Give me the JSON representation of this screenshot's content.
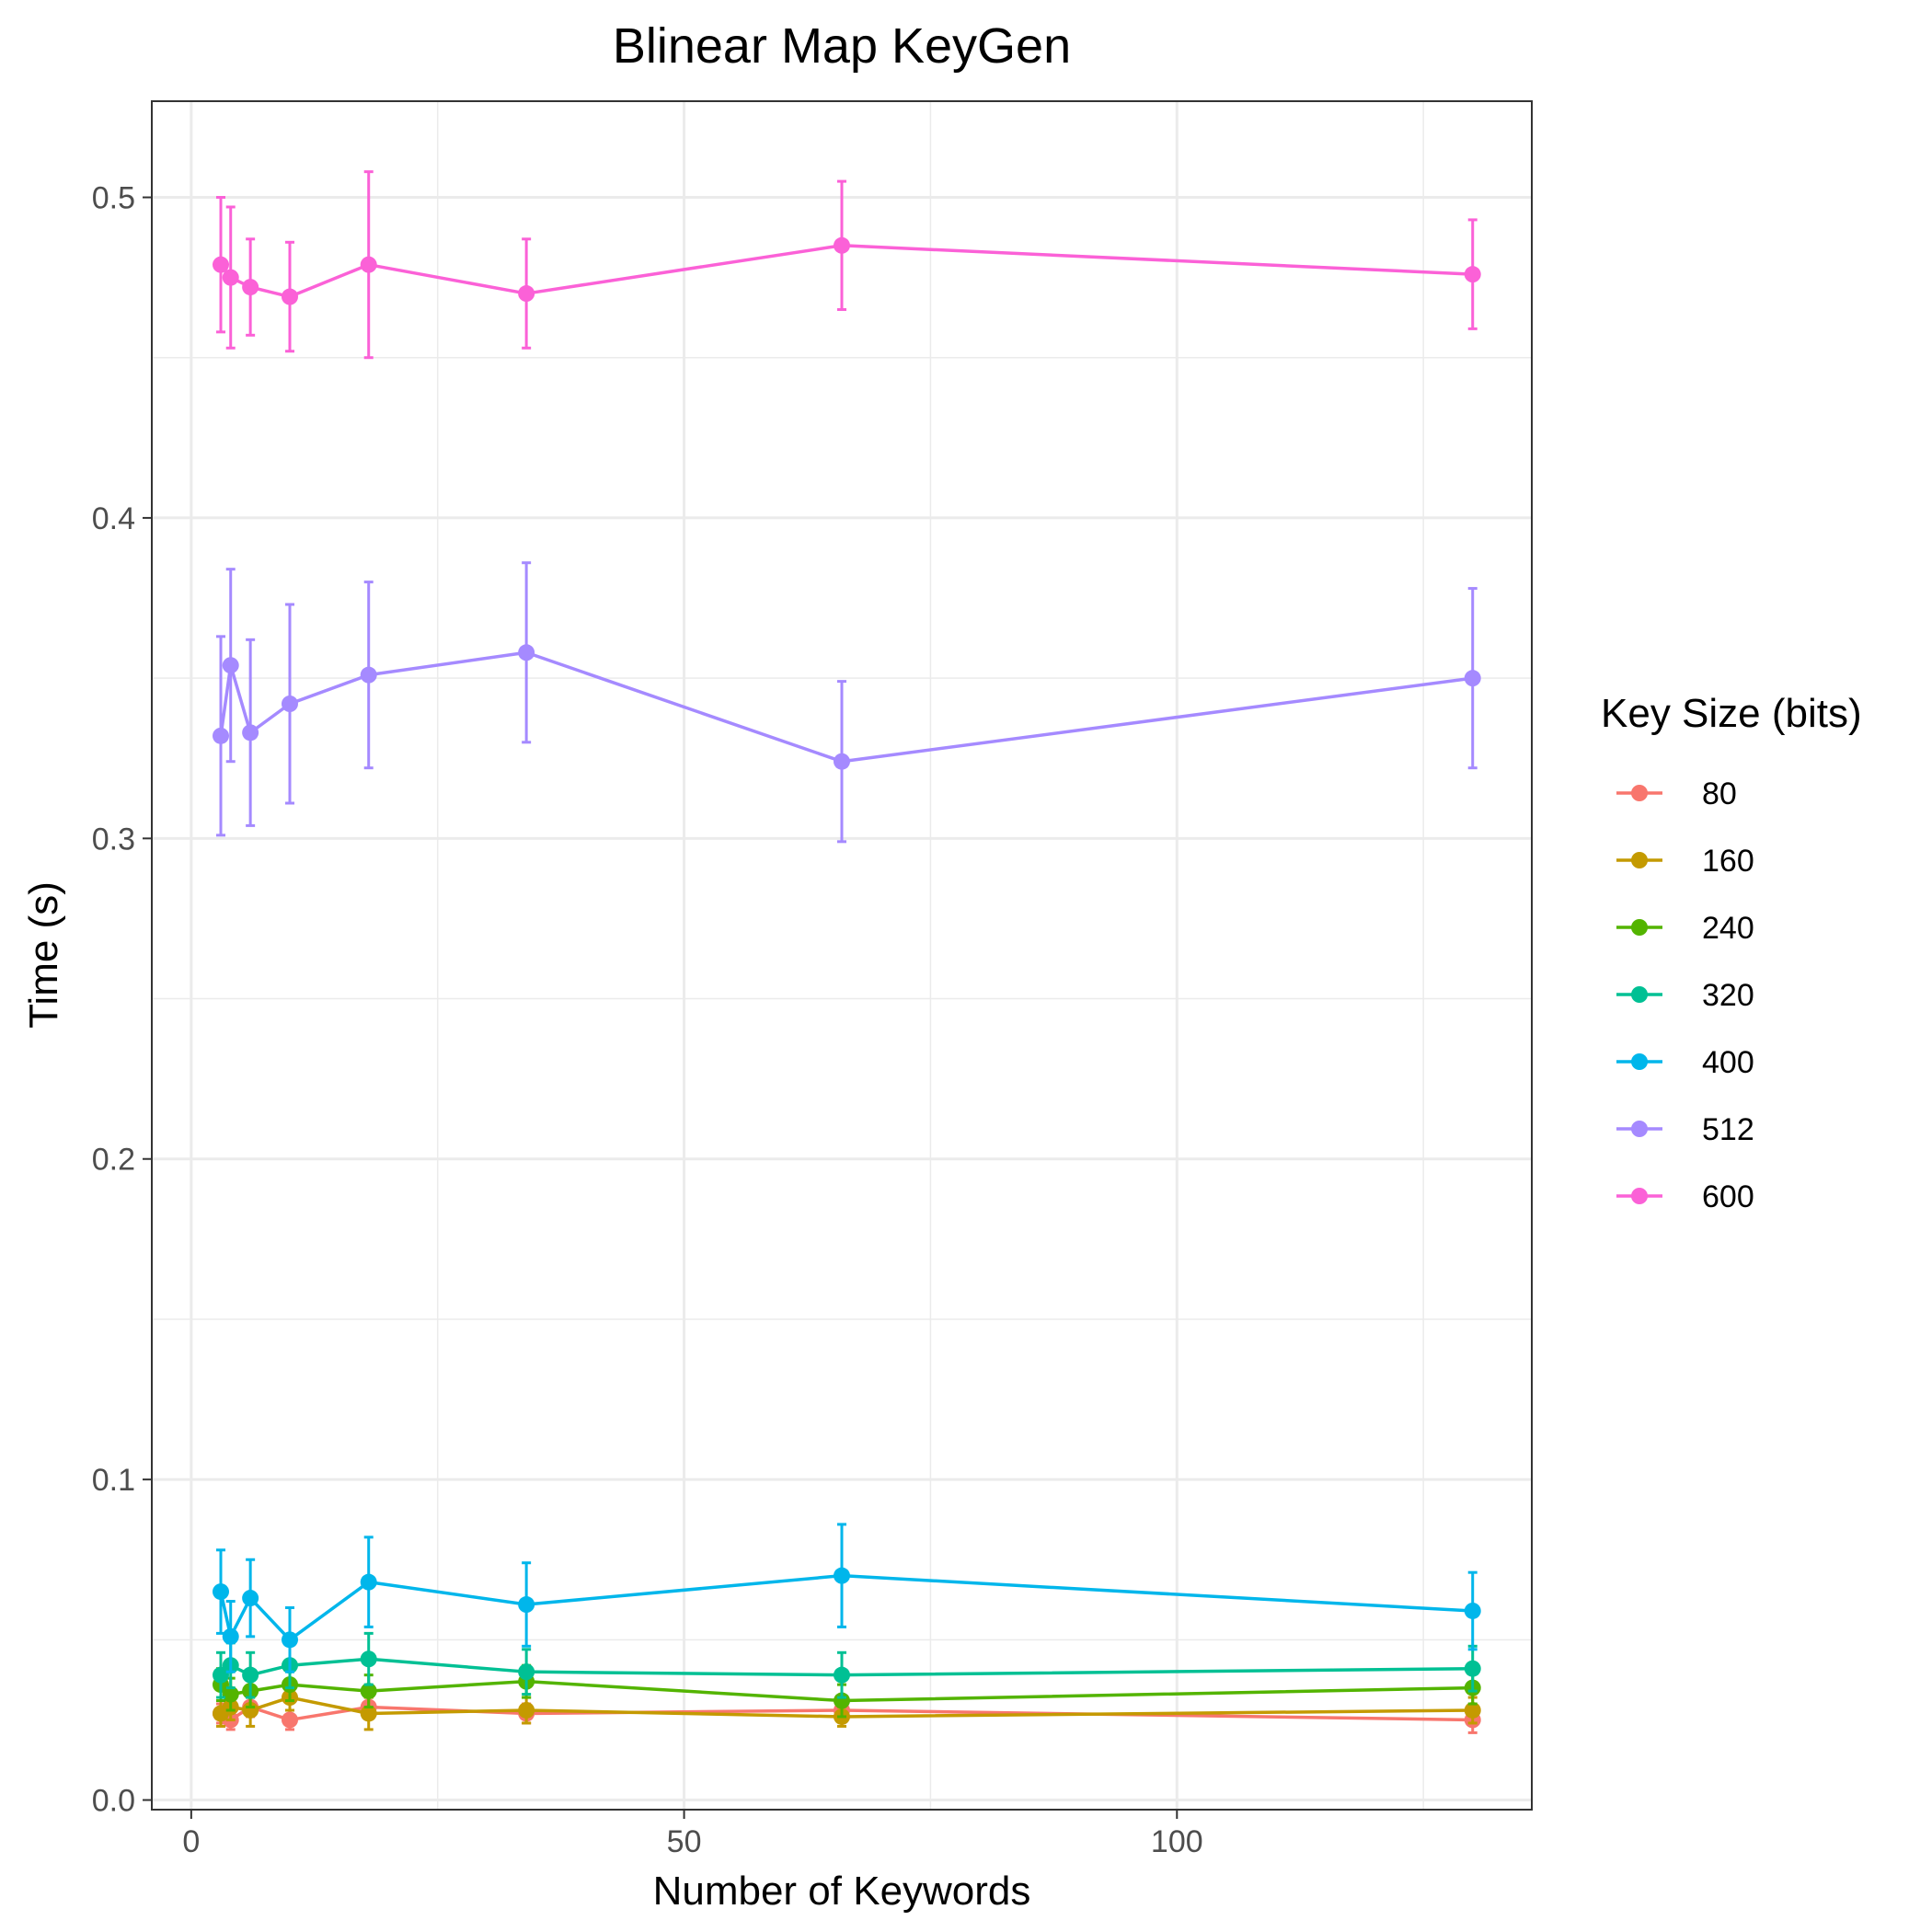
{
  "chart_data": {
    "type": "line",
    "title": "Blinear Map KeyGen",
    "xlabel": "Number of Keywords",
    "ylabel": "Time (s)",
    "xlim": [
      -4,
      136
    ],
    "ylim": [
      -0.003,
      0.53
    ],
    "x_ticks": [
      0,
      50,
      100
    ],
    "y_ticks": [
      0.0,
      0.1,
      0.2,
      0.3,
      0.4,
      0.5
    ],
    "x_tick_labels": [
      "0",
      "50",
      "100"
    ],
    "y_tick_labels": [
      "0.0",
      "0.1",
      "0.2",
      "0.3",
      "0.4",
      "0.5"
    ],
    "grid": true,
    "legend": {
      "title": "Key Size (bits)",
      "position": "right"
    },
    "x": [
      3,
      4,
      6,
      10,
      18,
      34,
      66,
      130
    ],
    "series": [
      {
        "name": "80",
        "color": "#F8766D",
        "values": [
          0.027,
          0.025,
          0.029,
          0.025,
          0.029,
          0.027,
          0.028,
          0.025
        ],
        "errors": [
          0.003,
          0.003,
          0.003,
          0.003,
          0.003,
          0.003,
          0.003,
          0.004
        ]
      },
      {
        "name": "160",
        "color": "#C49A00",
        "values": [
          0.027,
          0.029,
          0.028,
          0.032,
          0.027,
          0.028,
          0.026,
          0.028
        ],
        "errors": [
          0.004,
          0.004,
          0.005,
          0.004,
          0.005,
          0.004,
          0.003,
          0.004
        ]
      },
      {
        "name": "240",
        "color": "#53B400",
        "values": [
          0.036,
          0.033,
          0.034,
          0.036,
          0.034,
          0.037,
          0.031,
          0.035
        ],
        "errors": [
          0.005,
          0.005,
          0.005,
          0.005,
          0.005,
          0.005,
          0.005,
          0.005
        ]
      },
      {
        "name": "320",
        "color": "#00C094",
        "values": [
          0.039,
          0.042,
          0.039,
          0.042,
          0.044,
          0.04,
          0.039,
          0.041
        ],
        "errors": [
          0.007,
          0.007,
          0.007,
          0.007,
          0.008,
          0.007,
          0.007,
          0.007
        ]
      },
      {
        "name": "400",
        "color": "#00B6EB",
        "values": [
          0.065,
          0.051,
          0.063,
          0.05,
          0.068,
          0.061,
          0.07,
          0.059
        ],
        "errors": [
          0.013,
          0.011,
          0.012,
          0.01,
          0.014,
          0.013,
          0.016,
          0.012
        ]
      },
      {
        "name": "512",
        "color": "#A58AFF",
        "values": [
          0.332,
          0.354,
          0.333,
          0.342,
          0.351,
          0.358,
          0.324,
          0.35
        ],
        "errors": [
          0.031,
          0.03,
          0.029,
          0.031,
          0.029,
          0.028,
          0.025,
          0.028
        ]
      },
      {
        "name": "600",
        "color": "#FB61D7",
        "values": [
          0.479,
          0.475,
          0.472,
          0.469,
          0.479,
          0.47,
          0.485,
          0.476
        ],
        "errors": [
          0.021,
          0.022,
          0.015,
          0.017,
          0.029,
          0.017,
          0.02,
          0.017
        ]
      }
    ]
  }
}
